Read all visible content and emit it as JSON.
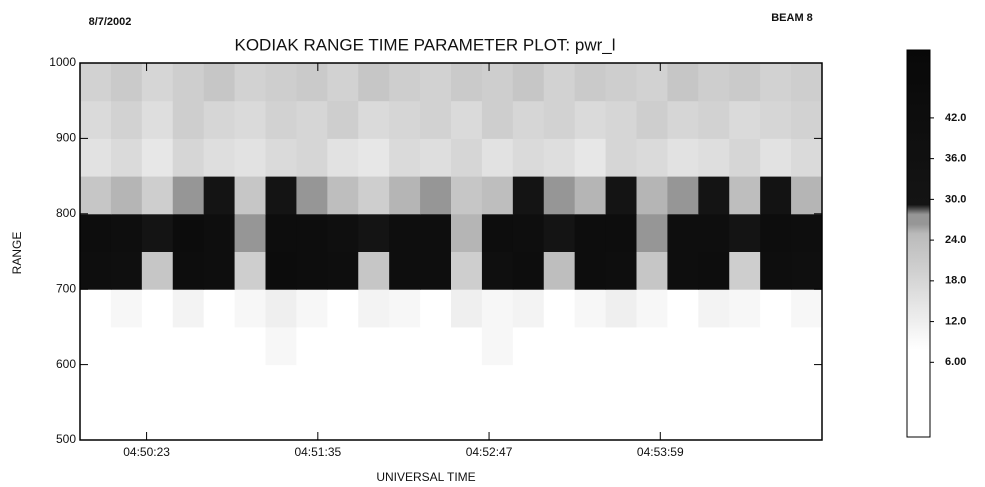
{
  "chart_data": {
    "type": "heatmap",
    "title": "KODIAK RANGE TIME PARAMETER PLOT: pwr_l",
    "date": "8/7/2002",
    "beam": "BEAM 8",
    "x_label": "UNIVERSAL TIME",
    "y_label": "RANGE",
    "xlim": [
      17395,
      17707
    ],
    "xticks": [
      {
        "value": 17423,
        "label": "04:50:23"
      },
      {
        "value": 17495,
        "label": "04:51:35"
      },
      {
        "value": 17567,
        "label": "04:52:47"
      },
      {
        "value": 17639,
        "label": "04:53:59"
      }
    ],
    "ylim": [
      500,
      1000
    ],
    "yticks": [
      500,
      600,
      700,
      800,
      900,
      1000
    ],
    "xbins": [
      17395,
      17408,
      17421,
      17434,
      17447,
      17460,
      17473,
      17486,
      17499,
      17512,
      17525,
      17538,
      17551,
      17564,
      17577,
      17590,
      17603,
      17616,
      17629,
      17642,
      17655,
      17668,
      17681,
      17694,
      17707
    ],
    "ybins": [
      500,
      550,
      600,
      650,
      700,
      750,
      800,
      850,
      900,
      950,
      1000
    ],
    "z": [
      [
        3,
        2,
        4,
        3,
        2,
        3,
        4,
        2,
        3,
        3,
        2,
        4,
        3,
        2,
        3,
        4,
        2,
        3,
        3,
        2,
        4,
        3,
        2,
        3
      ],
      [
        4,
        5,
        3,
        4,
        6,
        4,
        3,
        5,
        4,
        4,
        5,
        3,
        4,
        6,
        4,
        3,
        5,
        4,
        4,
        5,
        3,
        4,
        5,
        4
      ],
      [
        7,
        8,
        6,
        9,
        7,
        8,
        10,
        7,
        8,
        6,
        9,
        8,
        7,
        10,
        8,
        7,
        9,
        8,
        7,
        9,
        8,
        7,
        9,
        8
      ],
      [
        9,
        10,
        8,
        11,
        9,
        10,
        12,
        10,
        9,
        11,
        10,
        9,
        12,
        10,
        11,
        9,
        10,
        12,
        10,
        9,
        11,
        10,
        9,
        10
      ],
      [
        40,
        38,
        22,
        42,
        40,
        20,
        44,
        42,
        40,
        22,
        41,
        40,
        20,
        39,
        42,
        24,
        43,
        41,
        22,
        40,
        42,
        20,
        41,
        38
      ],
      [
        42,
        40,
        30,
        44,
        41,
        28,
        43,
        42,
        38,
        30,
        40,
        41,
        26,
        42,
        40,
        30,
        42,
        43,
        28,
        41,
        40,
        30,
        42,
        40
      ],
      [
        22,
        26,
        20,
        28,
        30,
        22,
        30,
        28,
        24,
        20,
        26,
        28,
        22,
        24,
        30,
        28,
        26,
        30,
        26,
        28,
        30,
        24,
        32,
        26
      ],
      [
        15,
        17,
        14,
        18,
        16,
        15,
        17,
        18,
        15,
        14,
        17,
        16,
        18,
        15,
        17,
        16,
        14,
        18,
        17,
        15,
        16,
        18,
        15,
        17
      ],
      [
        17,
        19,
        16,
        20,
        18,
        17,
        19,
        18,
        20,
        17,
        18,
        19,
        17,
        20,
        18,
        19,
        17,
        18,
        20,
        18,
        19,
        17,
        18,
        19
      ],
      [
        19,
        21,
        18,
        20,
        22,
        19,
        20,
        21,
        19,
        22,
        20,
        19,
        21,
        20,
        22,
        19,
        21,
        20,
        19,
        22,
        20,
        21,
        19,
        20
      ]
    ],
    "zlim": [
      -5,
      52
    ],
    "zticks": [
      {
        "value": 6,
        "label": "6.00"
      },
      {
        "value": 12,
        "label": "12.0"
      },
      {
        "value": 18,
        "label": "18.0"
      },
      {
        "value": 24,
        "label": "24.0"
      },
      {
        "value": 30,
        "label": "30.0"
      },
      {
        "value": 36,
        "label": "36.0"
      },
      {
        "value": 42,
        "label": "42.0"
      }
    ]
  }
}
